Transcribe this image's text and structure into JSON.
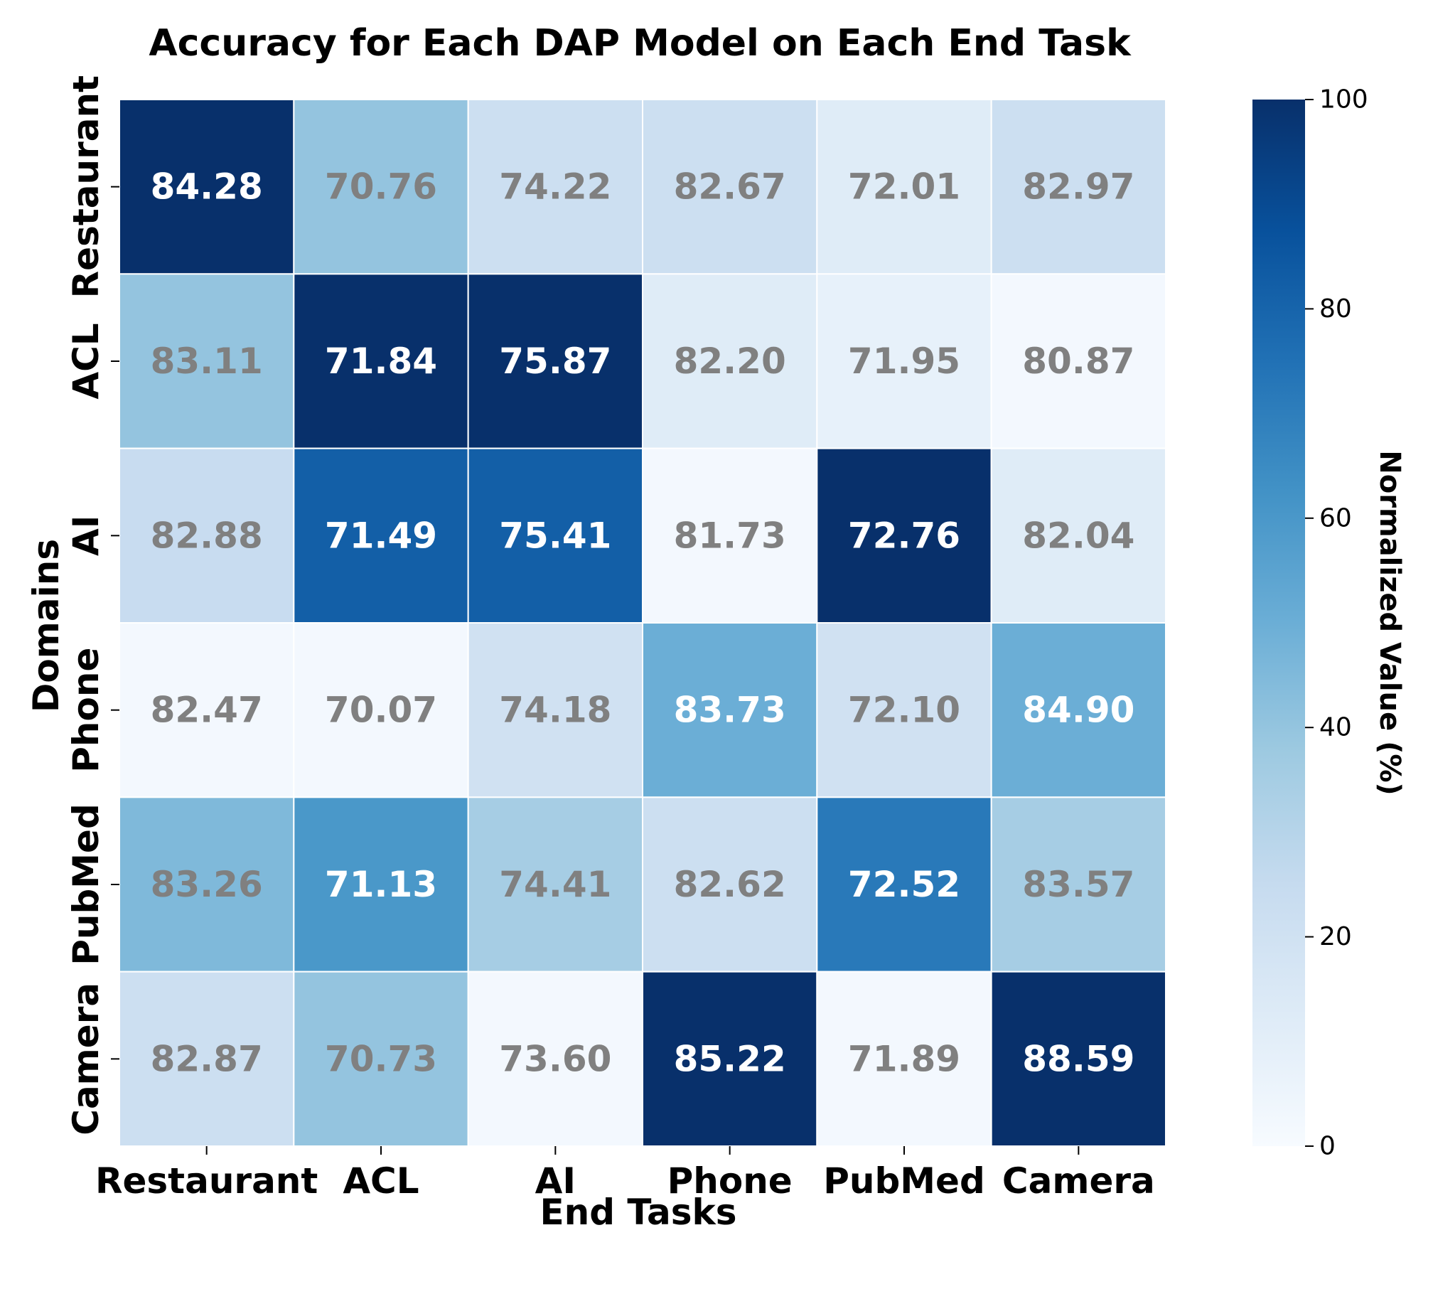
{
  "chart_data": {
    "type": "heatmap",
    "title": "Accuracy for Each DAP Model on Each End Task",
    "xlabel": "End Tasks",
    "ylabel": "Domains",
    "x_categories": [
      "Restaurant",
      "ACL",
      "AI",
      "Phone",
      "PubMed",
      "Camera"
    ],
    "y_categories": [
      "Restaurant",
      "ACL",
      "AI",
      "Phone",
      "PubMed",
      "Camera"
    ],
    "values": [
      [
        "84.28",
        "70.76",
        "74.22",
        "82.67",
        "72.01",
        "82.97"
      ],
      [
        "83.11",
        "71.84",
        "75.87",
        "82.20",
        "71.95",
        "80.87"
      ],
      [
        "82.88",
        "71.49",
        "75.41",
        "81.73",
        "72.76",
        "82.04"
      ],
      [
        "82.47",
        "70.07",
        "74.18",
        "83.73",
        "72.10",
        "84.90"
      ],
      [
        "83.26",
        "71.13",
        "74.41",
        "82.62",
        "72.52",
        "83.57"
      ],
      [
        "82.87",
        "70.73",
        "73.60",
        "85.22",
        "71.89",
        "88.59"
      ]
    ],
    "normalized_values": [
      [
        100,
        40,
        22,
        22,
        12,
        22
      ],
      [
        40,
        100,
        100,
        12,
        8,
        2
      ],
      [
        24,
        82,
        82,
        2,
        100,
        12
      ],
      [
        2,
        2,
        20,
        50,
        20,
        50
      ],
      [
        45,
        60,
        35,
        22,
        72,
        35
      ],
      [
        22,
        40,
        2,
        100,
        2,
        100
      ]
    ],
    "colorbar": {
      "label": "Normalized Value (%)",
      "range": [
        0,
        100
      ],
      "ticks": [
        "0",
        "20",
        "40",
        "60",
        "80",
        "100"
      ],
      "colormap": "Blues",
      "colors": [
        "#f7fbff",
        "#deebf7",
        "#c6dbef",
        "#9ecae1",
        "#6baed6",
        "#4292c6",
        "#2171b5",
        "#08519c",
        "#08306b"
      ]
    },
    "annotation_colors": {
      "light_cell": "#808080",
      "dark_cell": "#ffffff"
    },
    "grid": false
  }
}
